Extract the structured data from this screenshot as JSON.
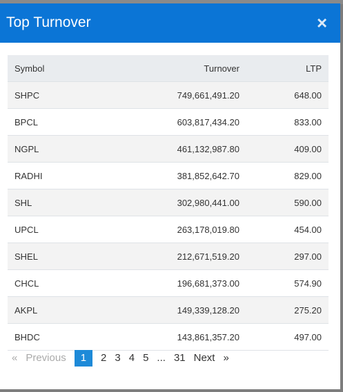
{
  "header": {
    "title": "Top Turnover",
    "close": "×"
  },
  "table": {
    "columns": [
      "Symbol",
      "Turnover",
      "LTP"
    ],
    "rows": [
      [
        "SHPC",
        "749,661,491.20",
        "648.00"
      ],
      [
        "BPCL",
        "603,817,434.20",
        "833.00"
      ],
      [
        "NGPL",
        "461,132,987.80",
        "409.00"
      ],
      [
        "RADHI",
        "381,852,642.70",
        "829.00"
      ],
      [
        "SHL",
        "302,980,441.00",
        "590.00"
      ],
      [
        "UPCL",
        "263,178,019.80",
        "454.00"
      ],
      [
        "SHEL",
        "212,671,519.20",
        "297.00"
      ],
      [
        "CHCL",
        "196,681,373.00",
        "574.90"
      ],
      [
        "AKPL",
        "149,339,128.20",
        "275.20"
      ],
      [
        "BHDC",
        "143,861,357.20",
        "497.00"
      ]
    ]
  },
  "pagination": {
    "first": "«",
    "previous": "Previous",
    "pages": [
      "1",
      "2",
      "3",
      "4",
      "5",
      "...",
      "31"
    ],
    "next": "Next",
    "last": "»"
  }
}
